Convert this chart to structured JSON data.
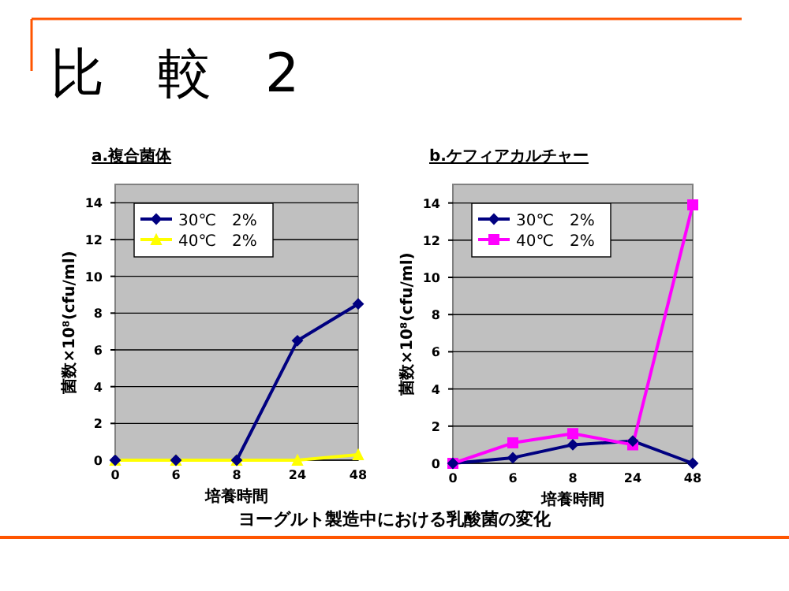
{
  "chart_data": [
    {
      "type": "line",
      "title": "a.複合菌体",
      "xlabel": "培養時間",
      "ylabel": "菌数×10⁸(cfu/ml)",
      "annotations": [
        "比　較　2"
      ],
      "categories": [
        "0",
        "6",
        "8",
        "24",
        "48"
      ],
      "ylim": [
        0,
        15
      ],
      "yticks": [
        0,
        2,
        4,
        6,
        8,
        10,
        12,
        14
      ],
      "grid": "y",
      "legend": "top left",
      "series": [
        {
          "name": "30℃　2%",
          "color": "#000080",
          "marker": "diamond",
          "values": [
            0,
            0,
            0,
            6.5,
            8.5
          ]
        },
        {
          "name": "40℃　2%",
          "color": "#ffff00",
          "marker": "triangle",
          "values": [
            0,
            0,
            0,
            0,
            0.3
          ]
        }
      ]
    },
    {
      "type": "line",
      "title": "b.ケフィアカルチャー",
      "xlabel": "培養時間",
      "ylabel": "菌数×10⁸(cfu/ml)",
      "annotations": [
        "ヨーグルト製造中における乳酸菌の変化"
      ],
      "categories": [
        "0",
        "6",
        "8",
        "24",
        "48"
      ],
      "ylim": [
        0,
        15
      ],
      "yticks": [
        0,
        2,
        4,
        6,
        8,
        10,
        12,
        14
      ],
      "grid": "y",
      "legend": "top left",
      "series": [
        {
          "name": "30℃　2%",
          "color": "#000080",
          "marker": "diamond",
          "values": [
            0,
            0.3,
            1,
            1.2,
            0
          ]
        },
        {
          "name": "40℃　2%",
          "color": "#ff00ff",
          "marker": "square",
          "values": [
            0,
            1.1,
            1.6,
            1.0,
            13.9
          ]
        }
      ]
    }
  ]
}
